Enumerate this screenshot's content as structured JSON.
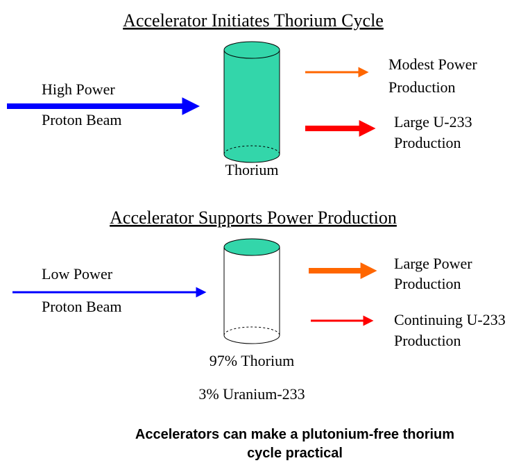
{
  "sections": [
    {
      "title": "Accelerator Initiates Thorium Cycle",
      "input": {
        "lines": [
          "High Power",
          "Proton Beam"
        ]
      },
      "target": {
        "lines": [
          "Thorium"
        ]
      },
      "outputs": [
        {
          "lines": [
            "Modest Power",
            "Production"
          ]
        },
        {
          "lines": [
            "Large U-233",
            "Production"
          ]
        }
      ]
    },
    {
      "title": "Accelerator Supports Power Production",
      "input": {
        "lines": [
          "Low Power",
          "Proton Beam"
        ]
      },
      "target": {
        "lines": [
          "97% Thorium",
          "3% Uranium-233"
        ]
      },
      "outputs": [
        {
          "lines": [
            "Large Power",
            "Production"
          ]
        },
        {
          "lines": [
            "Continuing U-233",
            "Production"
          ]
        }
      ]
    }
  ],
  "conclusion": {
    "lines": [
      "Accelerators can make a plutonium-free thorium",
      "cycle practical"
    ]
  }
}
